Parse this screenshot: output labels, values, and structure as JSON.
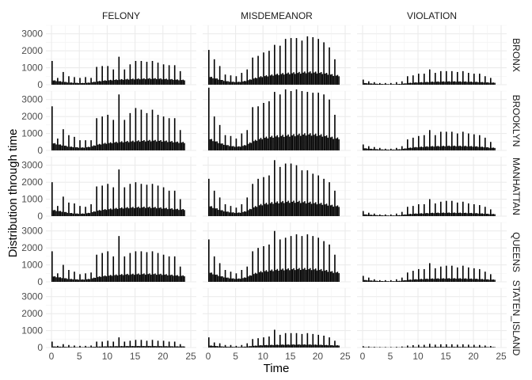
{
  "chart_data": {
    "type": "bar",
    "xlabel": "Time",
    "ylabel": "Distribution through time",
    "x_ticks": [
      0,
      5,
      10,
      15,
      20,
      25
    ],
    "y_ticks": [
      0,
      1000,
      2000,
      3000
    ],
    "xlim": [
      0,
      24
    ],
    "ylim": [
      0,
      3500
    ],
    "grid": true,
    "bar_color": "#000000",
    "columns": [
      "FELONY",
      "MISDEMEANOR",
      "VIOLATION"
    ],
    "rows": [
      "BRONX",
      "BROOKLYN",
      "MANHATTAN",
      "QUEENS",
      "STATEN_ISLAND"
    ],
    "bin_width": 0.25,
    "hourly_peak": {
      "note": "approximate peak bar height at each whole hour 0..23",
      "BRONX": {
        "FELONY": [
          1400,
          400,
          750,
          500,
          450,
          400,
          450,
          400,
          1050,
          1100,
          1100,
          900,
          1650,
          900,
          1200,
          1400,
          1400,
          1350,
          1400,
          1300,
          1200,
          1150,
          1150,
          800
        ],
        "MISDEMEANOR": [
          2050,
          1500,
          1100,
          600,
          550,
          500,
          700,
          900,
          1600,
          1700,
          1900,
          2000,
          2350,
          2300,
          2700,
          2750,
          2750,
          2600,
          2850,
          2800,
          2700,
          2500,
          2200,
          1500
        ],
        "VIOLATION": [
          300,
          200,
          150,
          100,
          100,
          100,
          150,
          200,
          500,
          550,
          650,
          650,
          900,
          700,
          800,
          800,
          800,
          750,
          800,
          700,
          650,
          650,
          500,
          400
        ]
      },
      "BROOKLYN": {
        "FELONY": [
          2600,
          700,
          1250,
          900,
          800,
          600,
          600,
          600,
          1900,
          2000,
          2100,
          1800,
          3300,
          1800,
          2200,
          2500,
          2400,
          2200,
          2400,
          2100,
          2000,
          1900,
          1900,
          1200
        ],
        "MISDEMEANOR": [
          3700,
          2000,
          1500,
          900,
          850,
          700,
          1000,
          1200,
          2550,
          2600,
          2800,
          2900,
          3450,
          3300,
          3600,
          3500,
          3600,
          3500,
          3450,
          3400,
          3400,
          3300,
          3000,
          2100
        ],
        "VIOLATION": [
          350,
          250,
          200,
          150,
          100,
          100,
          150,
          250,
          650,
          750,
          850,
          900,
          1200,
          900,
          1100,
          1100,
          1100,
          1000,
          1100,
          1000,
          950,
          900,
          750,
          500
        ]
      },
      "MANHATTAN": {
        "FELONY": [
          2000,
          600,
          1150,
          800,
          750,
          600,
          550,
          700,
          1750,
          1800,
          1900,
          1700,
          2750,
          1700,
          1900,
          2000,
          1900,
          1850,
          1900,
          1800,
          1700,
          1500,
          1500,
          1000
        ],
        "MISDEMEANOR": [
          2200,
          1500,
          1100,
          700,
          600,
          500,
          700,
          1100,
          1900,
          2200,
          2300,
          2400,
          3300,
          2900,
          3100,
          3100,
          3000,
          2700,
          2700,
          2500,
          2400,
          2200,
          2000,
          1500
        ],
        "VIOLATION": [
          300,
          200,
          150,
          100,
          100,
          100,
          150,
          250,
          550,
          600,
          700,
          700,
          1000,
          750,
          850,
          900,
          900,
          800,
          850,
          750,
          700,
          650,
          550,
          400
        ]
      },
      "QUEENS": {
        "FELONY": [
          1800,
          500,
          1000,
          700,
          600,
          450,
          500,
          550,
          1600,
          1700,
          1800,
          1500,
          2700,
          1500,
          1700,
          1800,
          1800,
          1750,
          1800,
          1700,
          1600,
          1500,
          1500,
          900
        ],
        "MISDEMEANOR": [
          2500,
          1500,
          1100,
          700,
          600,
          500,
          700,
          900,
          1800,
          2000,
          2100,
          2200,
          3000,
          2500,
          2600,
          2700,
          2800,
          2700,
          2800,
          2700,
          2600,
          2400,
          2200,
          1600
        ],
        "VIOLATION": [
          350,
          250,
          150,
          100,
          100,
          100,
          150,
          250,
          550,
          650,
          750,
          750,
          1100,
          800,
          900,
          950,
          950,
          850,
          950,
          850,
          800,
          750,
          600,
          450
        ]
      },
      "STATEN_ISLAND": {
        "FELONY": [
          350,
          100,
          200,
          150,
          120,
          100,
          100,
          120,
          350,
          350,
          400,
          350,
          600,
          350,
          400,
          450,
          450,
          400,
          450,
          400,
          400,
          350,
          350,
          200
        ],
        "MISDEMEANOR": [
          600,
          300,
          250,
          150,
          150,
          100,
          150,
          250,
          500,
          550,
          600,
          650,
          1050,
          750,
          850,
          850,
          850,
          800,
          850,
          800,
          750,
          700,
          600,
          400
        ],
        "VIOLATION": [
          80,
          60,
          40,
          30,
          30,
          30,
          40,
          60,
          120,
          140,
          160,
          160,
          220,
          170,
          190,
          190,
          190,
          170,
          190,
          170,
          160,
          150,
          120,
          90
        ]
      }
    },
    "hourly_base": {
      "note": "approximate typical height of the other 15-minute bars within each hour 0..23",
      "BRONX": {
        "FELONY": [
          300,
          250,
          200,
          150,
          130,
          110,
          120,
          150,
          220,
          260,
          300,
          320,
          350,
          360,
          380,
          390,
          400,
          410,
          420,
          410,
          390,
          370,
          350,
          320
        ],
        "MISDEMEANOR": [
          550,
          450,
          350,
          250,
          200,
          180,
          200,
          280,
          400,
          500,
          580,
          620,
          680,
          720,
          760,
          780,
          800,
          820,
          850,
          840,
          820,
          780,
          720,
          620
        ],
        "VIOLATION": [
          120,
          90,
          70,
          50,
          40,
          35,
          40,
          60,
          110,
          140,
          160,
          170,
          190,
          200,
          210,
          215,
          220,
          215,
          210,
          200,
          190,
          180,
          160,
          140
        ]
      },
      "BROOKLYN": {
        "FELONY": [
          500,
          420,
          340,
          260,
          220,
          190,
          200,
          260,
          380,
          450,
          500,
          530,
          570,
          590,
          610,
          630,
          650,
          660,
          670,
          660,
          640,
          610,
          580,
          540
        ],
        "MISDEMEANOR": [
          800,
          650,
          500,
          380,
          300,
          250,
          280,
          400,
          600,
          750,
          850,
          900,
          950,
          980,
          1000,
          1020,
          1050,
          1080,
          1100,
          1080,
          1050,
          1000,
          920,
          820
        ],
        "VIOLATION": [
          150,
          120,
          90,
          70,
          55,
          50,
          60,
          90,
          160,
          200,
          230,
          250,
          270,
          280,
          290,
          300,
          305,
          300,
          295,
          285,
          270,
          250,
          220,
          180
        ]
      },
      "MANHATTAN": {
        "FELONY": [
          420,
          360,
          300,
          220,
          180,
          160,
          180,
          240,
          360,
          420,
          470,
          500,
          540,
          560,
          580,
          590,
          600,
          600,
          590,
          570,
          540,
          510,
          480,
          450
        ],
        "MISDEMEANOR": [
          700,
          560,
          430,
          320,
          260,
          220,
          250,
          360,
          560,
          720,
          820,
          870,
          920,
          950,
          970,
          980,
          980,
          960,
          930,
          900,
          860,
          820,
          760,
          680
        ],
        "VIOLATION": [
          120,
          100,
          75,
          55,
          45,
          40,
          50,
          80,
          130,
          160,
          180,
          190,
          210,
          220,
          225,
          230,
          230,
          225,
          220,
          210,
          200,
          185,
          165,
          140
        ]
      },
      "QUEENS": {
        "FELONY": [
          380,
          320,
          260,
          200,
          170,
          150,
          160,
          210,
          320,
          380,
          420,
          450,
          480,
          500,
          510,
          520,
          530,
          530,
          530,
          520,
          500,
          470,
          440,
          410
        ],
        "MISDEMEANOR": [
          650,
          520,
          400,
          300,
          240,
          200,
          230,
          330,
          500,
          640,
          720,
          760,
          800,
          830,
          850,
          860,
          870,
          880,
          880,
          860,
          830,
          790,
          720,
          640
        ],
        "VIOLATION": [
          130,
          100,
          75,
          55,
          45,
          40,
          50,
          80,
          130,
          160,
          180,
          195,
          210,
          220,
          225,
          230,
          235,
          230,
          225,
          215,
          205,
          190,
          170,
          150
        ]
      },
      "STATEN_ISLAND": {
        "FELONY": [
          70,
          60,
          50,
          40,
          30,
          25,
          30,
          40,
          60,
          70,
          80,
          85,
          90,
          95,
          95,
          100,
          100,
          100,
          100,
          95,
          90,
          85,
          80,
          75
        ],
        "MISDEMEANOR": [
          140,
          110,
          80,
          60,
          50,
          40,
          45,
          70,
          110,
          140,
          160,
          170,
          180,
          190,
          195,
          200,
          200,
          200,
          200,
          195,
          185,
          175,
          160,
          145
        ],
        "VIOLATION": [
          25,
          20,
          15,
          12,
          10,
          8,
          10,
          15,
          25,
          30,
          35,
          38,
          40,
          42,
          44,
          45,
          45,
          44,
          43,
          42,
          40,
          38,
          34,
          30
        ]
      }
    }
  }
}
